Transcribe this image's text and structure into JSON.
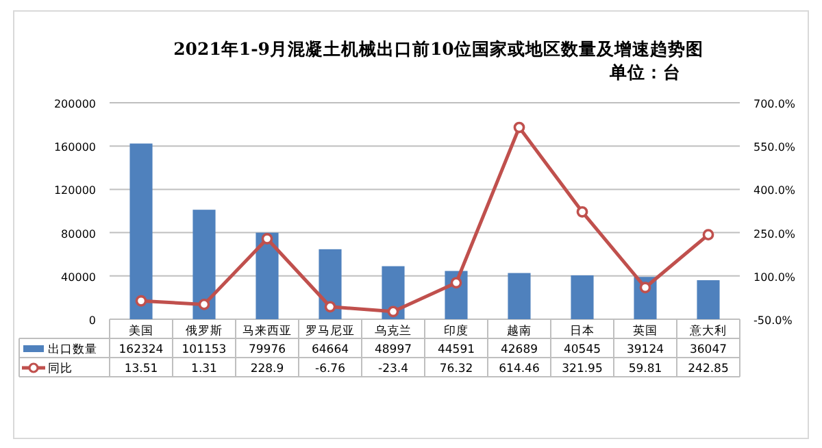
{
  "chart_data": {
    "type": "bar",
    "title": "2021年1-9月混凝土机械出口前10位国家或地区数量及增速趋势图",
    "subtitle": "单位：台",
    "categories": [
      "美国",
      "俄罗斯",
      "马来西亚",
      "罗马尼亚",
      "乌克兰",
      "印度",
      "越南",
      "日本",
      "英国",
      "意大利"
    ],
    "series": [
      {
        "name": "出口数量",
        "color": "#4f81bd",
        "values": [
          162324,
          101153,
          79976,
          64664,
          48997,
          44591,
          42689,
          40545,
          39124,
          36047
        ]
      },
      {
        "name": "同比",
        "type": "line",
        "axis": "y2",
        "color": "#c0504d",
        "marker": "circle",
        "values": [
          13.51,
          1.31,
          228.9,
          -6.76,
          -23.4,
          76.32,
          614.46,
          321.95,
          59.81,
          242.85
        ]
      }
    ],
    "ylim": [
      0,
      200000
    ],
    "yticks": [
      0,
      40000,
      80000,
      120000,
      160000,
      200000
    ],
    "y2lim": [
      -50,
      700
    ],
    "y2ticks": [
      {
        "value": -50,
        "label": "-50.0%"
      },
      {
        "value": 100,
        "label": "100.0%"
      },
      {
        "value": 250,
        "label": "250.0%"
      },
      {
        "value": 400,
        "label": "400.0%"
      },
      {
        "value": 550,
        "label": "550.0%"
      },
      {
        "value": 700,
        "label": "700.0%"
      }
    ],
    "grid": "y",
    "legend": "bottom",
    "data_labels": true
  }
}
